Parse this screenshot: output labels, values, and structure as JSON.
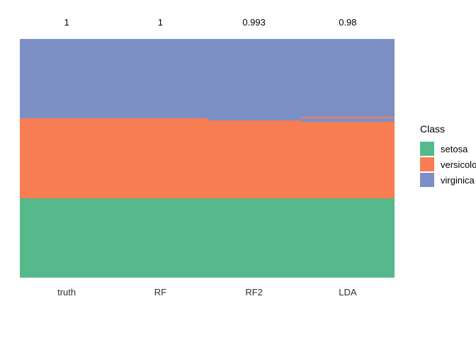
{
  "chart_data": {
    "type": "bar",
    "variant": "stacked-class-membership-by-model",
    "title": "",
    "xlabel": "",
    "ylabel": "",
    "grid": false,
    "categories": [
      "truth",
      "RF",
      "RF2",
      "LDA"
    ],
    "top_labels": [
      "1",
      "1",
      "0.993",
      "0.98"
    ],
    "total_samples_per_column": 150,
    "classes": [
      {
        "name": "setosa",
        "color": "#55B98C"
      },
      {
        "name": "versicolor",
        "color": "#F87D52"
      },
      {
        "name": "virginica",
        "color": "#7D90C5"
      }
    ],
    "columns": [
      {
        "label": "truth",
        "accuracy_label": "1",
        "segments_top_to_bottom": [
          {
            "class": "virginica",
            "count": 50
          },
          {
            "class": "versicolor",
            "count": 50
          },
          {
            "class": "setosa",
            "count": 50
          }
        ]
      },
      {
        "label": "RF",
        "accuracy_label": "1",
        "segments_top_to_bottom": [
          {
            "class": "virginica",
            "count": 50
          },
          {
            "class": "versicolor",
            "count": 50
          },
          {
            "class": "setosa",
            "count": 50
          }
        ]
      },
      {
        "label": "RF2",
        "accuracy_label": "0.993",
        "segments_top_to_bottom": [
          {
            "class": "virginica",
            "count": 51
          },
          {
            "class": "versicolor",
            "count": 49
          },
          {
            "class": "setosa",
            "count": 50
          }
        ]
      },
      {
        "label": "LDA",
        "accuracy_label": "0.98",
        "segments_top_to_bottom": [
          {
            "class": "virginica",
            "count": 49
          },
          {
            "class": "versicolor",
            "count": 1
          },
          {
            "class": "virginica",
            "count": 2
          },
          {
            "class": "versicolor",
            "count": 48
          },
          {
            "class": "setosa",
            "count": 50
          }
        ]
      }
    ],
    "legend": {
      "title": "Class",
      "position": "right",
      "entries": [
        "setosa",
        "versicolor",
        "virginica"
      ]
    }
  }
}
